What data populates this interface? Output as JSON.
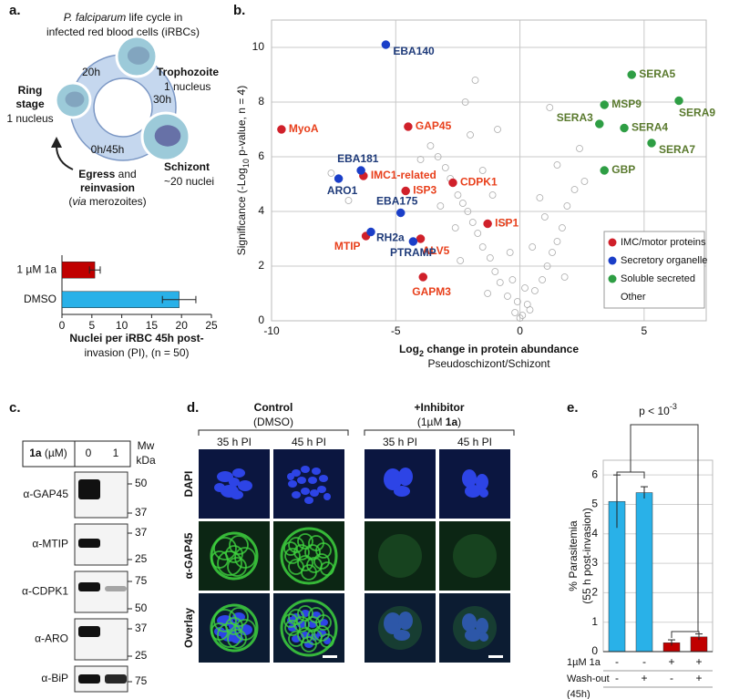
{
  "panel_a": {
    "label": "a.",
    "title": [
      "P. falciparum",
      " life cycle in"
    ],
    "title2": "infected red blood cells (iRBCs)",
    "ring": [
      "Ring",
      "stage",
      "1 nucleus"
    ],
    "trophozoite": [
      "Trophozoite",
      "1 nucleus"
    ],
    "schizont": [
      "Schizont",
      "~20 nuclei"
    ],
    "times": [
      "20h",
      "30h",
      "0h/45h"
    ],
    "egress": [
      "Egress",
      " and"
    ],
    "reinvasion": "reinvasion",
    "via": [
      "(",
      "via",
      " merozoites)"
    ]
  },
  "chart_data": [
    {
      "type": "hbar",
      "categories": [
        "1 µM 1a",
        "DMSO"
      ],
      "values": [
        5.5,
        19.6
      ],
      "errors": [
        0.9,
        2.8
      ],
      "colors": [
        "#c00000",
        "#29b1e8"
      ],
      "xlim": [
        0,
        25
      ],
      "xticks": [
        0,
        5,
        10,
        15,
        20,
        25
      ],
      "xlabel": [
        "Nuclei per iRBC 45h post-",
        "invasion (PI), (n = 50)"
      ]
    },
    {
      "type": "scatter",
      "label": "b.",
      "xlim": [
        -10,
        7.5
      ],
      "ylim": [
        0,
        11
      ],
      "xticks": [
        -10,
        -5,
        0,
        5
      ],
      "yticks": [
        0,
        2,
        4,
        6,
        8,
        10
      ],
      "grid": true,
      "legend": "lower right",
      "xlabel": [
        "Log",
        "2",
        " change in protein abundance"
      ],
      "subtitle": "Pseudoschizont/Schizont",
      "ylabel": [
        "Significance (-Log",
        "10",
        " p-value, n = 4)"
      ],
      "series": [
        {
          "name": "IMC/motor proteins",
          "color": "#d0202a",
          "label_color": "#e8401c",
          "x": [
            -9.6,
            -4.5,
            -6.3,
            -2.7,
            -4.6,
            -1.3,
            -4.0,
            -6.2,
            -3.9
          ],
          "values": [
            7.0,
            7.1,
            5.3,
            5.05,
            4.75,
            3.55,
            3.0,
            3.1,
            1.6
          ],
          "point_labels": [
            "MyoA",
            "GAP45",
            "IMC1-related",
            "CDPK1",
            "ISP3",
            "ISP1",
            "ALV5",
            "MTIP",
            "GAPM3"
          ]
        },
        {
          "name": "Secretory organelle",
          "color": "#1a3ec8",
          "label_color": "#1f3b7a",
          "x": [
            -5.4,
            -6.4,
            -7.3,
            -4.8,
            -6.0,
            -4.3
          ],
          "values": [
            10.1,
            5.5,
            5.2,
            3.95,
            3.25,
            2.9
          ],
          "point_labels": [
            "EBA140",
            "EBA181",
            "ARO1",
            "EBA175",
            "RH2a",
            "PTRAMP"
          ]
        },
        {
          "name": "Soluble secreted",
          "color": "#2e9e44",
          "label_color": "#5a7a2e",
          "x": [
            4.5,
            3.4,
            6.4,
            3.2,
            4.2,
            5.3,
            3.4
          ],
          "values": [
            9.0,
            7.9,
            8.05,
            7.2,
            7.05,
            6.5,
            5.5
          ],
          "point_labels": [
            "SERA5",
            "MSP9",
            "SERA9",
            "SERA3",
            "SERA4",
            "SERA7",
            "GBP"
          ]
        },
        {
          "name": "Other",
          "color": "#aaaaaa",
          "marker": "open",
          "x": [
            -0.2,
            0.1,
            0.3,
            -0.5,
            0.6,
            -0.8,
            0.9,
            -1.0,
            1.1,
            -1.2,
            1.3,
            -1.5,
            1.5,
            -1.7,
            1.7,
            -1.9,
            -2.1,
            -2.3,
            -2.5,
            -2.8,
            -3.0,
            -3.3,
            -3.6,
            -2.0,
            -1.5,
            -1.1,
            -0.7,
            0.5,
            1.0,
            1.9,
            2.2,
            2.6,
            1.5,
            -0.4,
            -0.3,
            0.2,
            -2.6,
            -3.2,
            -4.0,
            -2.2,
            -1.8,
            2.4,
            0.8,
            -0.9,
            -6.9,
            -7.6,
            1.2,
            -1.3,
            1.8,
            -2.4,
            0.0,
            0.4,
            -0.1
          ],
          "values": [
            0.3,
            0.2,
            0.6,
            0.9,
            1.1,
            1.4,
            1.5,
            1.8,
            2.0,
            2.3,
            2.5,
            2.7,
            2.9,
            3.2,
            3.4,
            3.6,
            4.0,
            4.3,
            4.6,
            5.2,
            5.6,
            6.0,
            6.4,
            6.8,
            5.5,
            4.6,
            3.6,
            2.7,
            3.8,
            4.2,
            4.8,
            5.1,
            5.7,
            2.5,
            1.5,
            1.2,
            3.4,
            4.2,
            5.9,
            8.0,
            8.8,
            6.3,
            4.5,
            7.0,
            4.4,
            5.4,
            7.8,
            1.0,
            1.6,
            2.2,
            0.1,
            0.4,
            0.7
          ]
        }
      ]
    },
    {
      "type": "bar",
      "values": [
        5.1,
        5.4,
        0.3,
        0.5
      ],
      "errors": [
        0.9,
        0.2,
        0.1,
        0.1
      ],
      "colors": [
        "#29b1e8",
        "#29b1e8",
        "#c00000",
        "#c00000"
      ],
      "ylim": [
        0,
        6.5
      ],
      "yticks": [
        0,
        1,
        2,
        3,
        4,
        5,
        6
      ],
      "grid": true,
      "ylabel": [
        "% Parasitemia",
        "(55 h post-invasion)"
      ],
      "annotation": [
        "p < 10",
        "-3"
      ]
    }
  ],
  "panel_c": {
    "label": "c.",
    "header": [
      "1a",
      " (µM)"
    ],
    "lanes": [
      "0",
      "1"
    ],
    "mw": [
      "Mw",
      "kDa"
    ],
    "blots": [
      {
        "antibody": "α-GAP45",
        "markers": [
          50,
          37
        ]
      },
      {
        "antibody": "α-MTIP",
        "markers": [
          37,
          25
        ]
      },
      {
        "antibody": "α-CDPK1",
        "markers": [
          75,
          50
        ]
      },
      {
        "antibody": "α-ARO",
        "markers": [
          37,
          25
        ]
      },
      {
        "antibody": "α-BiP",
        "markers": [
          75
        ]
      }
    ]
  },
  "panel_d": {
    "label": "d.",
    "groups": [
      {
        "title": "Control",
        "subtitle": [
          "(DMSO)"
        ]
      },
      {
        "title": "+Inhibitor",
        "subtitle": [
          "(1µM ",
          "1a",
          ")"
        ]
      }
    ],
    "columns": [
      "35 h PI",
      "45 h PI",
      "35 h PI",
      "45 h PI"
    ],
    "rows": [
      "DAPI",
      "α-GAP45",
      "Overlay"
    ]
  },
  "panel_e": {
    "label": "e.",
    "table": [
      {
        "label": "1µM 1a",
        "cells": [
          "-",
          "-",
          "+",
          "+"
        ]
      },
      {
        "label": "Wash-out",
        "cells": [
          "-",
          "+",
          "-",
          "+"
        ]
      }
    ],
    "note": "(45h)"
  }
}
